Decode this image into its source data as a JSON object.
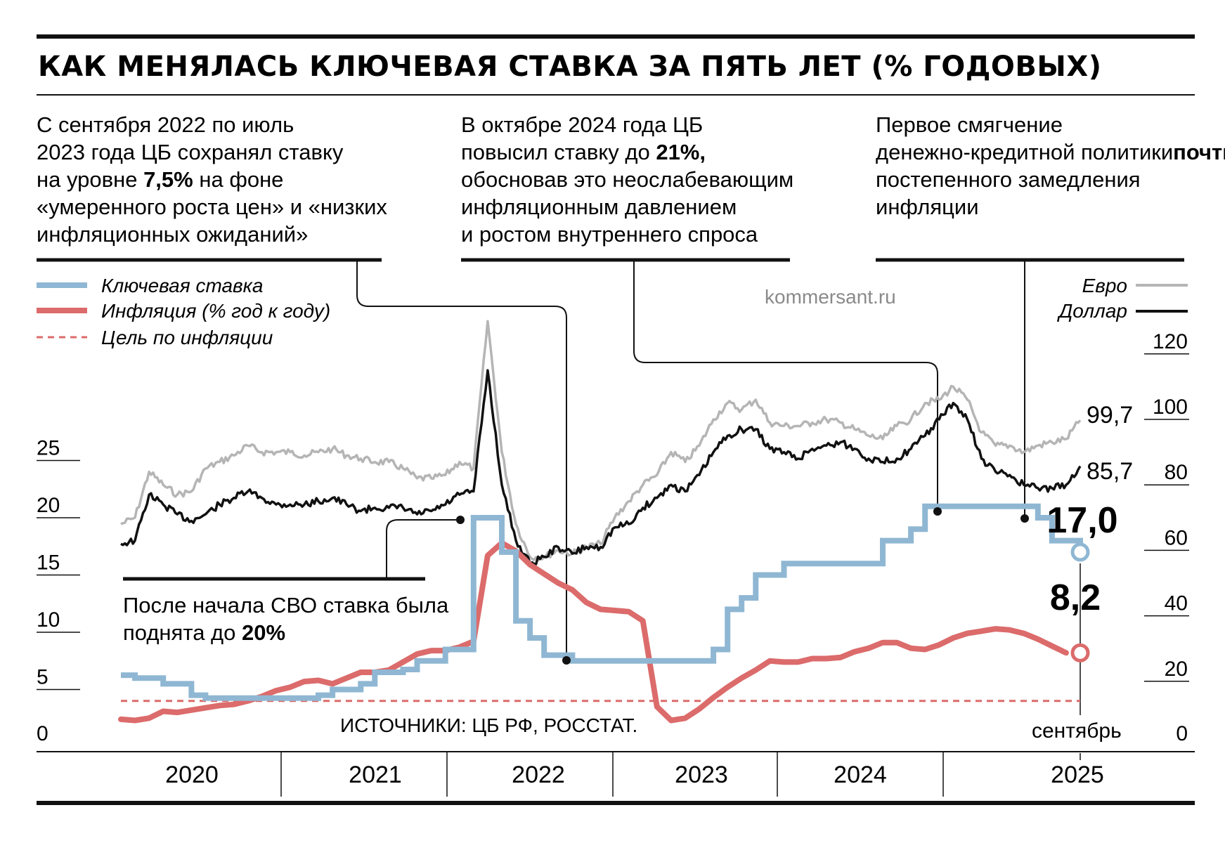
{
  "header": {
    "title": "КАК МЕНЯЛАСЬ КЛЮЧЕВАЯ СТАВКА ЗА ПЯТЬ ЛЕТ (% ГОДОВЫХ)"
  },
  "notes": {
    "note1": [
      "С сентября 2022 по июль",
      "2023 года ЦБ сохранял ставку",
      "на уровне |7,5%| на фоне",
      "«умеренного роста цен» и «низких",
      "инфляционных ожиданий»"
    ],
    "note2": [
      "В октябре 2024 года ЦБ",
      "повысил ставку до |21%,|",
      "обосновав это неослабевающим",
      "инфляционным давлением",
      "и ростом внутреннего спроса"
    ],
    "note3": [
      "Первое смягчение",
      "денежно-кредитной политики",
      "|почти за три года| на фоне",
      "постепенного замедления",
      "инфляции"
    ],
    "note4": [
      "После начала СВО ставка была",
      "поднята до |20%|"
    ]
  },
  "watermark": "kommersant.ru",
  "source": "ИСТОЧНИКИ:  ЦБ РФ, РОССТАТ.",
  "month_label": "сентябрь",
  "colors": {
    "key_rate": "#8fb7d3",
    "inflation": "#dc6b6b",
    "euro": "#b5b5b5",
    "dollar": "#111111"
  },
  "chart_data": {
    "type": "line",
    "x_axis": {
      "labels": [
        "2020",
        "2021",
        "2022",
        "2023",
        "2024",
        "2025"
      ],
      "range": [
        "2020-01",
        "2025-09"
      ]
    },
    "y_left": {
      "ticks": [
        "0",
        "5",
        "10",
        "15",
        "20",
        "25"
      ],
      "range": [
        0,
        25
      ]
    },
    "y_right": {
      "ticks": [
        "0",
        "20",
        "40",
        "60",
        "80",
        "100",
        "120"
      ],
      "range": [
        0,
        120
      ]
    },
    "legend": {
      "left": [
        "Ключевая ставка",
        "Инфляция (% год к году)",
        "Цель по инфляции"
      ],
      "right": [
        "Евро",
        "Доллар"
      ]
    },
    "end_labels": {
      "key_rate": "17,0",
      "inflation": "8,2",
      "euro": "99,7",
      "dollar": "85,7"
    },
    "series": [
      {
        "name": "Ключевая ставка",
        "axis": "left",
        "step": true,
        "points": [
          [
            "2020-01",
            6.25
          ],
          [
            "2020-02",
            6.0
          ],
          [
            "2020-04",
            5.5
          ],
          [
            "2020-06",
            4.5
          ],
          [
            "2020-07",
            4.25
          ],
          [
            "2021-03",
            4.5
          ],
          [
            "2021-04",
            5.0
          ],
          [
            "2021-06",
            5.5
          ],
          [
            "2021-07",
            6.5
          ],
          [
            "2021-09",
            6.75
          ],
          [
            "2021-10",
            7.5
          ],
          [
            "2021-12",
            8.5
          ],
          [
            "2022-02",
            9.5
          ],
          [
            "2022-02",
            20.0
          ],
          [
            "2022-04",
            17.0
          ],
          [
            "2022-05",
            14.0
          ],
          [
            "2022-05",
            11.0
          ],
          [
            "2022-06",
            9.5
          ],
          [
            "2022-07",
            8.0
          ],
          [
            "2022-09",
            7.5
          ],
          [
            "2023-07",
            8.5
          ],
          [
            "2023-08",
            12.0
          ],
          [
            "2023-09",
            13.0
          ],
          [
            "2023-10",
            15.0
          ],
          [
            "2023-12",
            16.0
          ],
          [
            "2024-07",
            18.0
          ],
          [
            "2024-09",
            19.0
          ],
          [
            "2024-10",
            21.0
          ],
          [
            "2025-06",
            20.0
          ],
          [
            "2025-07",
            18.0
          ],
          [
            "2025-09",
            17.0
          ]
        ]
      },
      {
        "name": "Инфляция (% год к году)",
        "axis": "left",
        "points": [
          [
            "2020-01",
            2.4
          ],
          [
            "2020-02",
            2.3
          ],
          [
            "2020-03",
            2.5
          ],
          [
            "2020-04",
            3.1
          ],
          [
            "2020-05",
            3.0
          ],
          [
            "2020-06",
            3.2
          ],
          [
            "2020-07",
            3.4
          ],
          [
            "2020-08",
            3.6
          ],
          [
            "2020-09",
            3.7
          ],
          [
            "2020-10",
            4.0
          ],
          [
            "2020-11",
            4.4
          ],
          [
            "2020-12",
            4.9
          ],
          [
            "2021-01",
            5.2
          ],
          [
            "2021-02",
            5.7
          ],
          [
            "2021-03",
            5.8
          ],
          [
            "2021-04",
            5.5
          ],
          [
            "2021-05",
            6.0
          ],
          [
            "2021-06",
            6.5
          ],
          [
            "2021-07",
            6.5
          ],
          [
            "2021-08",
            6.7
          ],
          [
            "2021-09",
            7.4
          ],
          [
            "2021-10",
            8.1
          ],
          [
            "2021-11",
            8.4
          ],
          [
            "2021-12",
            8.4
          ],
          [
            "2022-01",
            8.7
          ],
          [
            "2022-02",
            9.2
          ],
          [
            "2022-03",
            16.7
          ],
          [
            "2022-04",
            17.8
          ],
          [
            "2022-05",
            17.1
          ],
          [
            "2022-06",
            15.9
          ],
          [
            "2022-07",
            15.1
          ],
          [
            "2022-08",
            14.3
          ],
          [
            "2022-09",
            13.7
          ],
          [
            "2022-10",
            12.6
          ],
          [
            "2022-11",
            12.0
          ],
          [
            "2022-12",
            11.9
          ],
          [
            "2023-01",
            11.8
          ],
          [
            "2023-02",
            11.0
          ],
          [
            "2023-03",
            3.5
          ],
          [
            "2023-04",
            2.3
          ],
          [
            "2023-05",
            2.5
          ],
          [
            "2023-06",
            3.3
          ],
          [
            "2023-07",
            4.3
          ],
          [
            "2023-08",
            5.2
          ],
          [
            "2023-09",
            6.0
          ],
          [
            "2023-10",
            6.7
          ],
          [
            "2023-11",
            7.5
          ],
          [
            "2023-12",
            7.4
          ],
          [
            "2024-01",
            7.4
          ],
          [
            "2024-02",
            7.7
          ],
          [
            "2024-03",
            7.7
          ],
          [
            "2024-04",
            7.8
          ],
          [
            "2024-05",
            8.3
          ],
          [
            "2024-06",
            8.6
          ],
          [
            "2024-07",
            9.1
          ],
          [
            "2024-08",
            9.1
          ],
          [
            "2024-09",
            8.6
          ],
          [
            "2024-10",
            8.5
          ],
          [
            "2024-11",
            8.9
          ],
          [
            "2024-12",
            9.5
          ],
          [
            "2025-01",
            9.9
          ],
          [
            "2025-02",
            10.1
          ],
          [
            "2025-03",
            10.3
          ],
          [
            "2025-04",
            10.2
          ],
          [
            "2025-05",
            9.9
          ],
          [
            "2025-06",
            9.4
          ],
          [
            "2025-07",
            8.8
          ],
          [
            "2025-08",
            8.2
          ]
        ]
      },
      {
        "name": "Цель по инфляции",
        "axis": "left",
        "dashed": true,
        "points": [
          [
            "2020-01",
            4.0
          ],
          [
            "2025-09",
            4.0
          ]
        ]
      },
      {
        "name": "Евро",
        "axis": "right",
        "points": [
          [
            "2020-01",
            68
          ],
          [
            "2020-02",
            70
          ],
          [
            "2020-03",
            84
          ],
          [
            "2020-04",
            80
          ],
          [
            "2020-05",
            77
          ],
          [
            "2020-06",
            78
          ],
          [
            "2020-07",
            85
          ],
          [
            "2020-08",
            87
          ],
          [
            "2020-09",
            89
          ],
          [
            "2020-10",
            92
          ],
          [
            "2020-11",
            90
          ],
          [
            "2020-12",
            90
          ],
          [
            "2021-01",
            90
          ],
          [
            "2021-02",
            89
          ],
          [
            "2021-03",
            90
          ],
          [
            "2021-04",
            91
          ],
          [
            "2021-05",
            89
          ],
          [
            "2021-06",
            88
          ],
          [
            "2021-07",
            87
          ],
          [
            "2021-08",
            87
          ],
          [
            "2021-09",
            85
          ],
          [
            "2021-10",
            82
          ],
          [
            "2021-11",
            82
          ],
          [
            "2021-12",
            83
          ],
          [
            "2022-01",
            87
          ],
          [
            "2022-02",
            85
          ],
          [
            "2022-03",
            130
          ],
          [
            "2022-04",
            90
          ],
          [
            "2022-05",
            68
          ],
          [
            "2022-06",
            58
          ],
          [
            "2022-07",
            58
          ],
          [
            "2022-08",
            60
          ],
          [
            "2022-09",
            59
          ],
          [
            "2022-10",
            61
          ],
          [
            "2022-11",
            62
          ],
          [
            "2022-12",
            70
          ],
          [
            "2023-01",
            75
          ],
          [
            "2023-02",
            80
          ],
          [
            "2023-03",
            83
          ],
          [
            "2023-04",
            90
          ],
          [
            "2023-05",
            87
          ],
          [
            "2023-06",
            92
          ],
          [
            "2023-07",
            100
          ],
          [
            "2023-08",
            105
          ],
          [
            "2023-09",
            103
          ],
          [
            "2023-10",
            106
          ],
          [
            "2023-11",
            99
          ],
          [
            "2023-12",
            98
          ],
          [
            "2024-01",
            98
          ],
          [
            "2024-02",
            99
          ],
          [
            "2024-03",
            100
          ],
          [
            "2024-04",
            99
          ],
          [
            "2024-05",
            97
          ],
          [
            "2024-06",
            95
          ],
          [
            "2024-07",
            94
          ],
          [
            "2024-08",
            98
          ],
          [
            "2024-09",
            100
          ],
          [
            "2024-10",
            105
          ],
          [
            "2024-11",
            106
          ],
          [
            "2024-12",
            110
          ],
          [
            "2025-01",
            106
          ],
          [
            "2025-02",
            96
          ],
          [
            "2025-03",
            92
          ],
          [
            "2025-04",
            92
          ],
          [
            "2025-05",
            90
          ],
          [
            "2025-06",
            92
          ],
          [
            "2025-07",
            93
          ],
          [
            "2025-08",
            94
          ],
          [
            "2025-09",
            99.7
          ]
        ]
      },
      {
        "name": "Доллар",
        "axis": "right",
        "points": [
          [
            "2020-01",
            62
          ],
          [
            "2020-02",
            63
          ],
          [
            "2020-03",
            77
          ],
          [
            "2020-04",
            74
          ],
          [
            "2020-05",
            71
          ],
          [
            "2020-06",
            69
          ],
          [
            "2020-07",
            71
          ],
          [
            "2020-08",
            74
          ],
          [
            "2020-09",
            76
          ],
          [
            "2020-10",
            78
          ],
          [
            "2020-11",
            76
          ],
          [
            "2020-12",
            74
          ],
          [
            "2021-01",
            74
          ],
          [
            "2021-02",
            74
          ],
          [
            "2021-03",
            75
          ],
          [
            "2021-04",
            76
          ],
          [
            "2021-05",
            74
          ],
          [
            "2021-06",
            72
          ],
          [
            "2021-07",
            73
          ],
          [
            "2021-08",
            73
          ],
          [
            "2021-09",
            73
          ],
          [
            "2021-10",
            71
          ],
          [
            "2021-11",
            72
          ],
          [
            "2021-12",
            74
          ],
          [
            "2022-01",
            77
          ],
          [
            "2022-02",
            78
          ],
          [
            "2022-03",
            115
          ],
          [
            "2022-04",
            80
          ],
          [
            "2022-05",
            63
          ],
          [
            "2022-06",
            56
          ],
          [
            "2022-07",
            58
          ],
          [
            "2022-08",
            61
          ],
          [
            "2022-09",
            59
          ],
          [
            "2022-10",
            61
          ],
          [
            "2022-11",
            61
          ],
          [
            "2022-12",
            67
          ],
          [
            "2023-01",
            68
          ],
          [
            "2023-02",
            73
          ],
          [
            "2023-03",
            76
          ],
          [
            "2023-04",
            80
          ],
          [
            "2023-05",
            78
          ],
          [
            "2023-06",
            83
          ],
          [
            "2023-07",
            90
          ],
          [
            "2023-08",
            95
          ],
          [
            "2023-09",
            97
          ],
          [
            "2023-10",
            97
          ],
          [
            "2023-11",
            91
          ],
          [
            "2023-12",
            90
          ],
          [
            "2024-01",
            88
          ],
          [
            "2024-02",
            91
          ],
          [
            "2024-03",
            92
          ],
          [
            "2024-04",
            93
          ],
          [
            "2024-05",
            91
          ],
          [
            "2024-06",
            88
          ],
          [
            "2024-07",
            87
          ],
          [
            "2024-08",
            88
          ],
          [
            "2024-09",
            91
          ],
          [
            "2024-10",
            95
          ],
          [
            "2024-11",
            100
          ],
          [
            "2024-12",
            105
          ],
          [
            "2025-01",
            100
          ],
          [
            "2025-02",
            88
          ],
          [
            "2025-03",
            84
          ],
          [
            "2025-04",
            83
          ],
          [
            "2025-05",
            80
          ],
          [
            "2025-06",
            79
          ],
          [
            "2025-07",
            79
          ],
          [
            "2025-08",
            80
          ],
          [
            "2025-09",
            85.7
          ]
        ]
      }
    ]
  }
}
